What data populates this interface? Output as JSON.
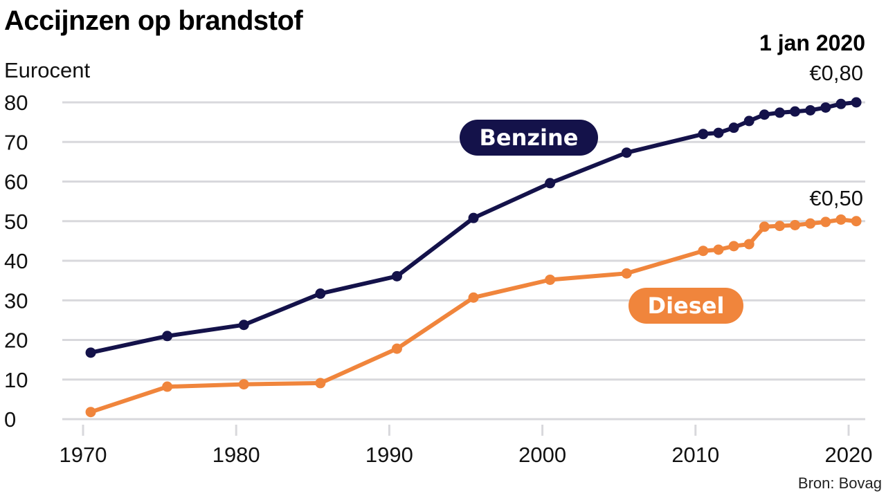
{
  "chart_data": {
    "type": "line",
    "title": "Accijnzen op brandstof",
    "ylabel": "Eurocent",
    "xlabel": "",
    "ylim": [
      0,
      80
    ],
    "xlim": [
      1970,
      2020
    ],
    "yticks": [
      0,
      10,
      20,
      30,
      40,
      50,
      60,
      70,
      80
    ],
    "xticks": [
      1970,
      1980,
      1990,
      2000,
      2010,
      2020
    ],
    "grid": "horizontal",
    "annotation_date": "1 jan 2020",
    "source": "Bron: Bovag",
    "series": [
      {
        "name": "Benzine",
        "color": "#14124a",
        "end_label": "€0,80",
        "x": [
          1970.5,
          1975.5,
          1980.5,
          1985.5,
          1990.5,
          1995.5,
          2000.5,
          2005.5,
          2010.5,
          2011.5,
          2012.5,
          2013.5,
          2014.5,
          2015.5,
          2016.5,
          2017.5,
          2018.5,
          2019.5,
          2020.5
        ],
        "values": [
          16.8,
          21,
          23.8,
          31.7,
          36.1,
          50.8,
          59.6,
          67.3,
          72,
          72.3,
          73.6,
          75.3,
          76.9,
          77.4,
          77.7,
          78,
          78.7,
          79.6,
          80
        ]
      },
      {
        "name": "Diesel",
        "color": "#f0853c",
        "end_label": "€0,50",
        "x": [
          1970.5,
          1975.5,
          1980.5,
          1985.5,
          1990.5,
          1995.5,
          2000.5,
          2005.5,
          2010.5,
          2011.5,
          2012.5,
          2013.5,
          2014.5,
          2015.5,
          2016.5,
          2017.5,
          2018.5,
          2019.5,
          2020.5
        ],
        "values": [
          1.8,
          8.2,
          8.8,
          9.1,
          17.8,
          30.7,
          35.2,
          36.8,
          42.5,
          42.8,
          43.7,
          44.2,
          48.6,
          48.8,
          49,
          49.4,
          49.8,
          50.4,
          50
        ]
      }
    ]
  }
}
